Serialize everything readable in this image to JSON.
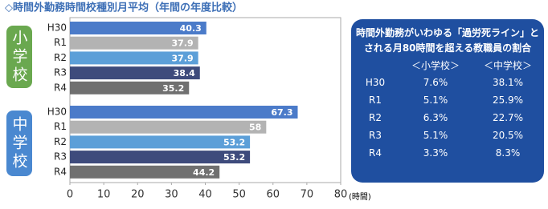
{
  "chart_data": {
    "type": "bar",
    "orientation": "horizontal",
    "title": "◇時間外勤務時間校種別月平均（年間の年度比較）",
    "categories": [
      "H30",
      "R1",
      "R2",
      "R3",
      "R4"
    ],
    "colors": [
      "#4b7bc9",
      "#b3b3b3",
      "#5c9fd8",
      "#3e4b7c",
      "#707070"
    ],
    "groups": [
      {
        "name": "小学校",
        "color": "#6aa84f",
        "values": [
          40.3,
          37.9,
          37.9,
          38.4,
          35.2
        ]
      },
      {
        "name": "中学校",
        "color": "#4a88d0",
        "values": [
          67.3,
          58,
          53.2,
          53.2,
          44.2
        ]
      }
    ],
    "xlim": [
      0,
      80
    ],
    "xticks": [
      0,
      10,
      20,
      30,
      40,
      50,
      60,
      70,
      80
    ],
    "x_label": "(時間)"
  },
  "table": {
    "title_lines": [
      "時間外勤務がいわゆる「過労死ライン」と",
      "される月80時間を超える教職員の割合"
    ],
    "headers": [
      "＜小学校＞",
      "＜中学校＞"
    ],
    "rows": [
      [
        "H30",
        "7.6%",
        "38.1%"
      ],
      [
        "R1",
        "5.1%",
        "25.9%"
      ],
      [
        "R2",
        "6.3%",
        "22.7%"
      ],
      [
        "R3",
        "5.1%",
        "20.5%"
      ],
      [
        "R4",
        "3.3%",
        "8.3%"
      ]
    ]
  }
}
